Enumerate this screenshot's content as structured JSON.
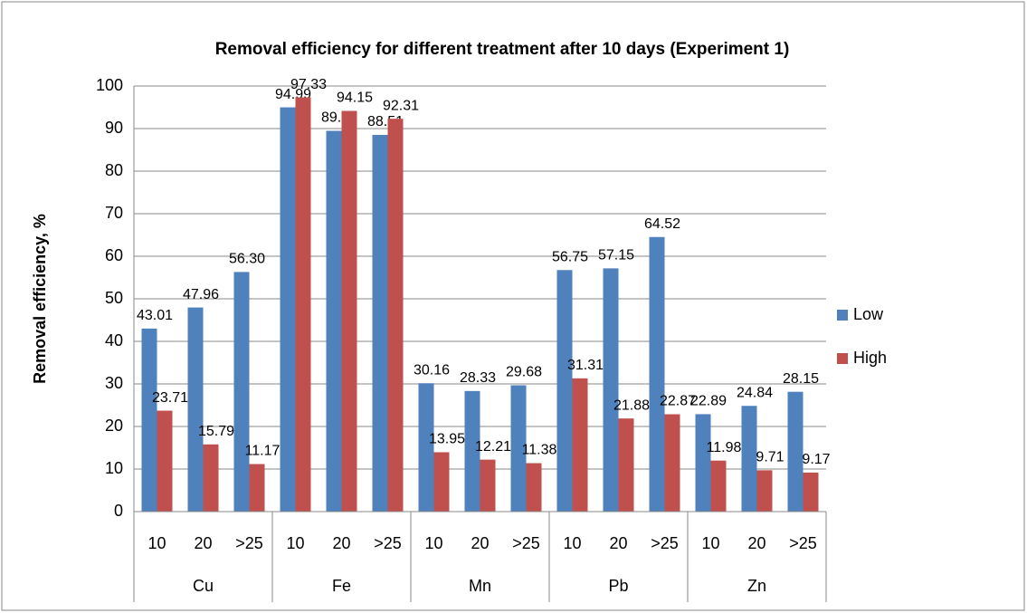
{
  "chart_data": {
    "type": "bar",
    "title": "Removal efficiency for different treatment after 10 days (Experiment 1)",
    "y_label": "Removal efficiency, %",
    "categories": [
      "10",
      "20",
      ">25",
      "10",
      "20",
      ">25",
      "10",
      "20",
      ">25",
      "10",
      "20",
      ">25",
      "10",
      "20",
      ">25"
    ],
    "groups": [
      "Cu",
      "Fe",
      "Mn",
      "Pb",
      "Zn"
    ],
    "series": [
      {
        "name": "Low",
        "color": "#4f81bd",
        "values": [
          43.01,
          47.96,
          56.3,
          94.99,
          89.47,
          88.51,
          30.16,
          28.33,
          29.68,
          56.75,
          57.15,
          64.52,
          22.89,
          24.84,
          28.15
        ],
        "value_labels": [
          "43.01",
          "47.96",
          "56.30",
          "94.99",
          "89.47",
          "88.51",
          "30.16",
          "28.33",
          "29.68",
          "56.75",
          "57.15",
          "64.52",
          "22.89",
          "24.84",
          "28.15"
        ]
      },
      {
        "name": "High",
        "color": "#c0504d",
        "values": [
          23.71,
          15.79,
          11.17,
          97.33,
          94.15,
          92.31,
          13.95,
          12.21,
          11.38,
          31.31,
          21.88,
          22.87,
          11.98,
          9.71,
          9.17
        ],
        "value_labels": [
          "23.71",
          "15.79",
          "11.17",
          "97.33",
          "94.15",
          "92.31",
          "13.95",
          "12.21",
          "11.38",
          "31.31",
          "21.88",
          "22.87",
          "11.98",
          "9.71",
          "9.17"
        ]
      }
    ],
    "ylim": [
      0,
      100
    ],
    "yticks": [
      0,
      10,
      20,
      30,
      40,
      50,
      60,
      70,
      80,
      90,
      100
    ],
    "grid": true,
    "legend": "right"
  }
}
